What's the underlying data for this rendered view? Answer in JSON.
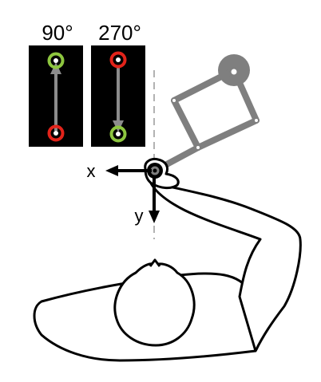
{
  "labels": {
    "angle_left": "90°",
    "angle_right": "270°",
    "axis_x": "x",
    "axis_y": "y"
  },
  "colors": {
    "panel_bg": "#000000",
    "start_marker": "#8dc63f",
    "end_marker": "#e2231a",
    "arrow": "#8c8c8c",
    "manipulandum": "#7f7f7f",
    "body_stroke": "#000000",
    "body_fill": "#ffffff",
    "dashed_midline": "#999999"
  },
  "icons": {
    "start_marker": "circular-arrow-ring-icon",
    "end_marker": "ring-target-icon"
  }
}
